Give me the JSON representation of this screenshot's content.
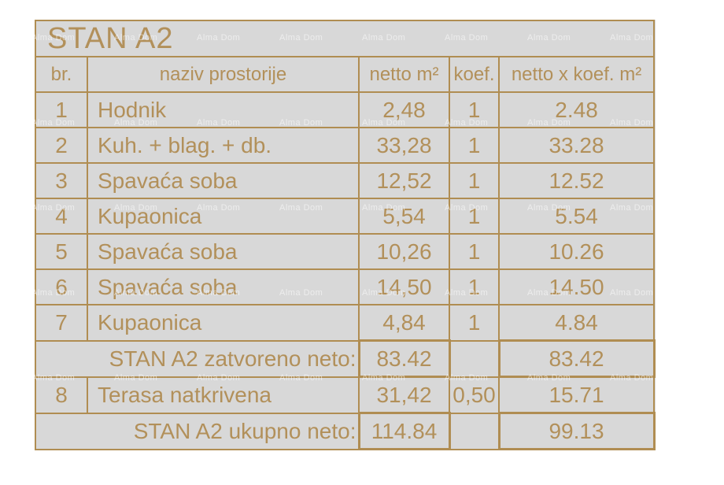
{
  "title": "STAN A2",
  "columns": {
    "br": "br.",
    "naziv": "naziv prostorije",
    "netto": "netto m²",
    "koef": "koef.",
    "netto_koef": "netto x koef. m²"
  },
  "rows": [
    {
      "type": "room",
      "br": "1",
      "naziv": "Hodnik",
      "netto": "2,48",
      "koef": "1",
      "netto_koef": "2.48"
    },
    {
      "type": "room",
      "br": "2",
      "naziv": "Kuh. + blag. + db.",
      "netto": "33,28",
      "koef": "1",
      "netto_koef": "33.28"
    },
    {
      "type": "room",
      "br": "3",
      "naziv": "Spavaća soba",
      "netto": "12,52",
      "koef": "1",
      "netto_koef": "12.52"
    },
    {
      "type": "room",
      "br": "4",
      "naziv": "Kupaonica",
      "netto": "5,54",
      "koef": "1",
      "netto_koef": "5.54"
    },
    {
      "type": "room",
      "br": "5",
      "naziv": "Spavaća soba",
      "netto": "10,26",
      "koef": "1",
      "netto_koef": "10.26"
    },
    {
      "type": "room",
      "br": "6",
      "naziv": "Spavaća soba",
      "netto": "14,50",
      "koef": "1",
      "netto_koef": "14.50"
    },
    {
      "type": "room",
      "br": "7",
      "naziv": "Kupaonica",
      "netto": "4,84",
      "koef": "1",
      "netto_koef": "4.84"
    },
    {
      "type": "summary",
      "label": "STAN A2 zatvoreno neto:",
      "netto": "83.42",
      "koef": "",
      "netto_koef": "83.42"
    },
    {
      "type": "room",
      "br": "8",
      "naziv": "Terasa natkrivena",
      "netto": "31,42",
      "koef": "0,50",
      "netto_koef": "15.71"
    },
    {
      "type": "summary",
      "label": "STAN A2 ukupno neto:",
      "netto": "114.84",
      "koef": "",
      "netto_koef": "99.13"
    }
  ],
  "watermark": {
    "text": "Alma Dom"
  },
  "colors": {
    "accent_text": "#b2905a",
    "border": "#b08d52",
    "table_bg": "#d8d8d8",
    "page_bg": "#ffffff",
    "watermark": "#ffffff"
  }
}
